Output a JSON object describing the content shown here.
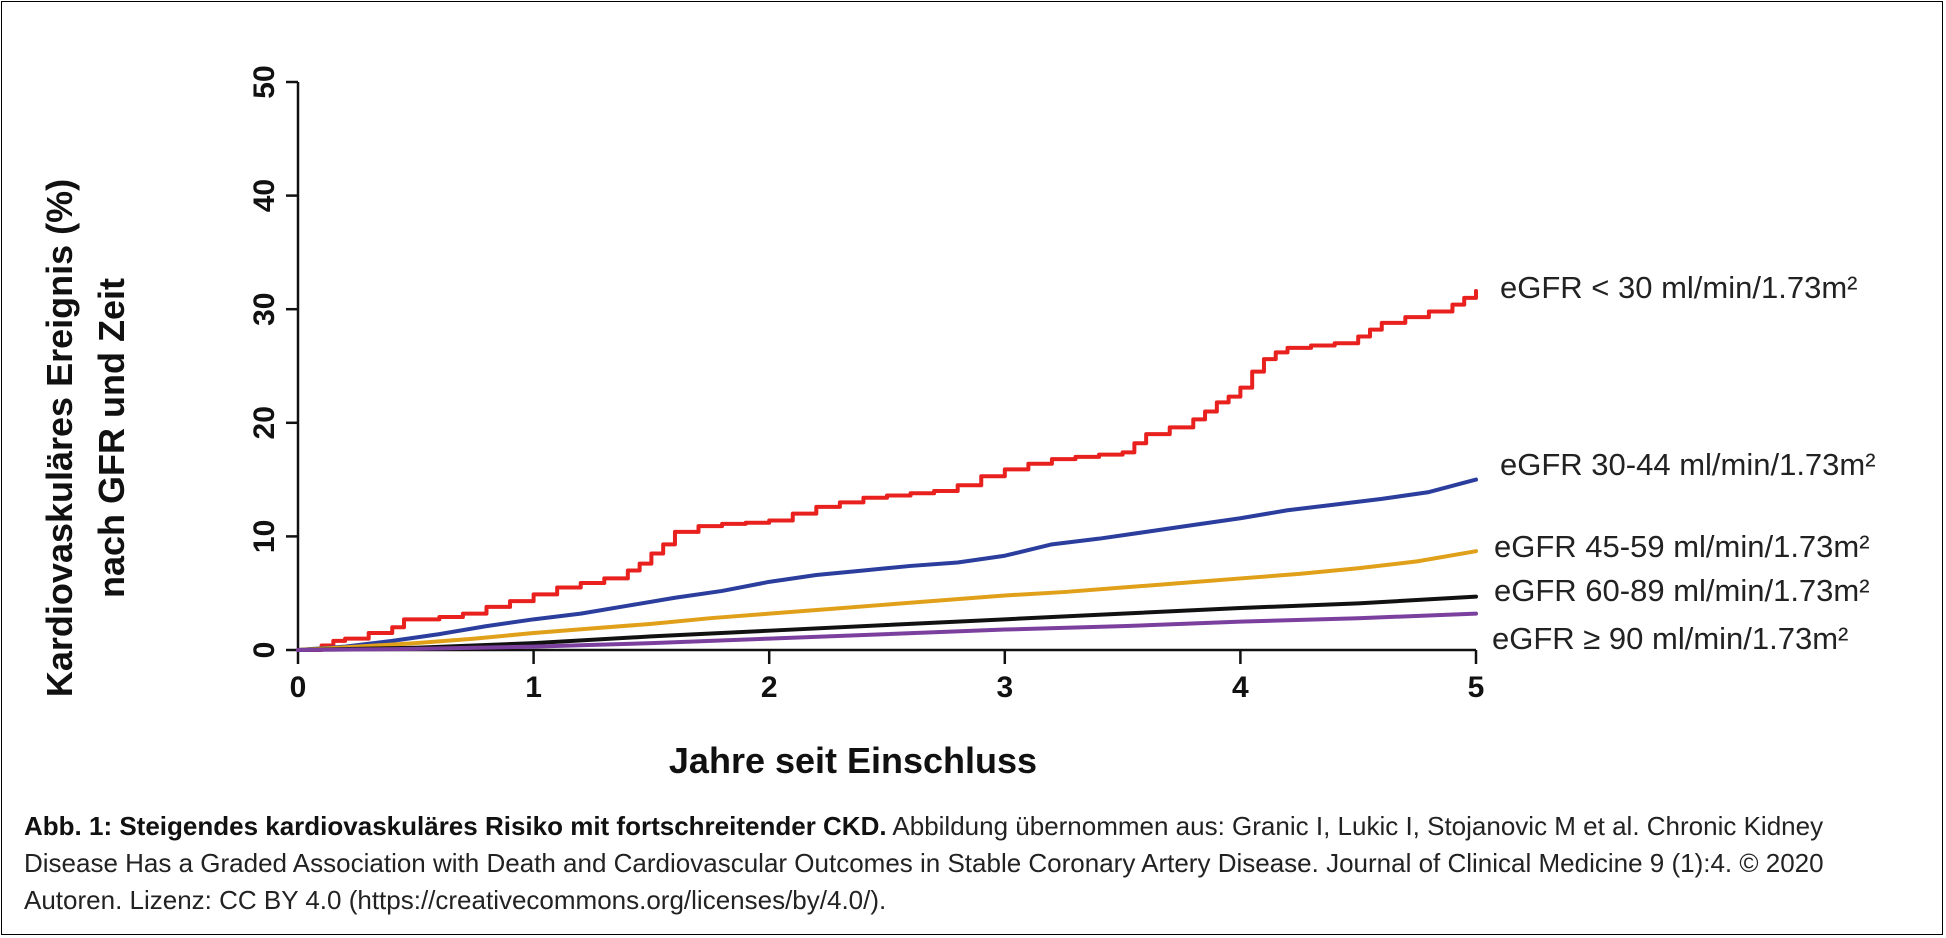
{
  "chart_data": {
    "type": "line",
    "ylabel": "Kardiovaskuläres Ereignis (%) nach GFR und Zeit",
    "ylabel_lines": [
      "Kardiovaskuläres Ereignis (%)",
      "nach GFR und Zeit"
    ],
    "xlabel": "Jahre seit Einschluss",
    "xlim": [
      0,
      5
    ],
    "ylim": [
      0,
      50
    ],
    "x_ticks": [
      "0",
      "1",
      "2",
      "3",
      "4",
      "5"
    ],
    "y_ticks": [
      "0",
      "10",
      "20",
      "30",
      "40",
      "50"
    ],
    "grid": false,
    "legend": "direct labels at right end of each line",
    "series": [
      {
        "name": "eGFR < 30 ml/min/1.73m²",
        "color": "#e8201e",
        "step": true,
        "x": [
          0,
          0.1,
          0.15,
          0.2,
          0.3,
          0.4,
          0.45,
          0.6,
          0.7,
          0.8,
          0.9,
          1.0,
          1.1,
          1.2,
          1.3,
          1.4,
          1.45,
          1.5,
          1.55,
          1.6,
          1.7,
          1.8,
          1.9,
          2.0,
          2.1,
          2.2,
          2.3,
          2.4,
          2.5,
          2.6,
          2.7,
          2.8,
          2.9,
          3.0,
          3.1,
          3.2,
          3.3,
          3.4,
          3.5,
          3.55,
          3.6,
          3.7,
          3.8,
          3.85,
          3.9,
          3.95,
          4.0,
          4.05,
          4.1,
          4.15,
          4.2,
          4.3,
          4.4,
          4.5,
          4.55,
          4.6,
          4.7,
          4.8,
          4.9,
          4.95,
          5.0
        ],
        "y": [
          0,
          0.4,
          0.8,
          1.0,
          1.5,
          2.0,
          2.7,
          2.9,
          3.2,
          3.8,
          4.3,
          4.9,
          5.5,
          5.9,
          6.3,
          7.0,
          7.6,
          8.5,
          9.3,
          10.4,
          10.9,
          11.1,
          11.2,
          11.4,
          12.0,
          12.6,
          13.0,
          13.4,
          13.6,
          13.8,
          14.0,
          14.5,
          15.3,
          15.9,
          16.4,
          16.8,
          17.0,
          17.2,
          17.4,
          18.2,
          19.0,
          19.6,
          20.3,
          21.0,
          21.8,
          22.3,
          23.1,
          24.5,
          25.6,
          26.2,
          26.6,
          26.8,
          27.0,
          27.6,
          28.2,
          28.8,
          29.3,
          29.8,
          30.4,
          31.0,
          31.6
        ]
      },
      {
        "name": "eGFR 30-44 ml/min/1.73m²",
        "color": "#2b3e9e",
        "x": [
          0,
          0.2,
          0.4,
          0.6,
          0.8,
          1.0,
          1.2,
          1.4,
          1.6,
          1.8,
          2.0,
          2.2,
          2.4,
          2.6,
          2.8,
          3.0,
          3.2,
          3.4,
          3.6,
          3.8,
          4.0,
          4.2,
          4.4,
          4.6,
          4.8,
          5.0
        ],
        "y": [
          0,
          0.3,
          0.8,
          1.4,
          2.1,
          2.7,
          3.2,
          3.9,
          4.6,
          5.2,
          6.0,
          6.6,
          7.0,
          7.4,
          7.7,
          8.3,
          9.3,
          9.8,
          10.4,
          11.0,
          11.6,
          12.3,
          12.8,
          13.3,
          13.9,
          15.0
        ]
      },
      {
        "name": "eGFR 45-59 ml/min/1.73m²",
        "color": "#e0a019",
        "x": [
          0,
          0.25,
          0.5,
          0.75,
          1.0,
          1.25,
          1.5,
          1.75,
          2.0,
          2.25,
          2.5,
          2.75,
          3.0,
          3.25,
          3.5,
          3.75,
          4.0,
          4.25,
          4.5,
          4.75,
          5.0
        ],
        "y": [
          0,
          0.3,
          0.6,
          1.0,
          1.5,
          1.9,
          2.3,
          2.8,
          3.2,
          3.6,
          4.0,
          4.4,
          4.8,
          5.1,
          5.5,
          5.9,
          6.3,
          6.7,
          7.2,
          7.8,
          8.7
        ]
      },
      {
        "name": "eGFR 60-89 ml/min/1.73m²",
        "color": "#111111",
        "x": [
          0,
          0.5,
          1.0,
          1.5,
          2.0,
          2.5,
          3.0,
          3.5,
          4.0,
          4.5,
          5.0
        ],
        "y": [
          0,
          0.2,
          0.6,
          1.2,
          1.7,
          2.2,
          2.7,
          3.2,
          3.7,
          4.1,
          4.7
        ]
      },
      {
        "name": "eGFR ≥ 90 ml/min/1.73m²",
        "color": "#7b3f9d",
        "x": [
          0,
          0.5,
          1.0,
          1.5,
          2.0,
          2.5,
          3.0,
          3.5,
          4.0,
          4.5,
          5.0
        ],
        "y": [
          0,
          0.1,
          0.3,
          0.6,
          1.0,
          1.4,
          1.8,
          2.1,
          2.5,
          2.8,
          3.2
        ]
      }
    ]
  },
  "caption": {
    "bold": "Abb. 1: Steigendes kardiovaskuläres Risiko mit fortschreitender CKD.",
    "text": "Abbildung übernommen aus: Granic I, Lukic I, Stojanovic M et al. Chronic Kidney Disease Has a Graded Association with Death and Cardiovascular Outcomes in Stable Coronary Artery Disease. Journal of Clinical Medicine 9 (1):4. © 2020 Autoren. Lizenz: CC BY 4.0 (https://creativecommons.org/licenses/by/4.0/)."
  }
}
